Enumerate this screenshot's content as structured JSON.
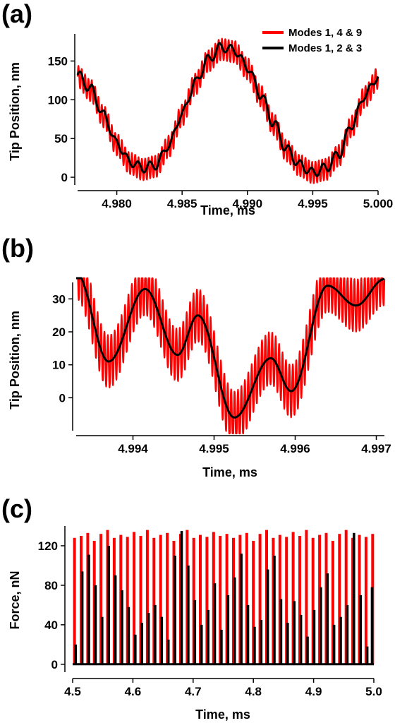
{
  "chart_data": [
    {
      "panel": "(a)",
      "type": "line",
      "xlabel": "Time, ms",
      "ylabel": "Tip Position, nm",
      "xlim": [
        4.977,
        5.0
      ],
      "ylim": [
        -10,
        185
      ],
      "xticks": [
        4.98,
        4.985,
        4.99,
        4.995,
        5.0
      ],
      "xtick_labels": [
        "4.980",
        "4.985",
        "4.990",
        "4.995",
        "5.000"
      ],
      "yticks": [
        0,
        50,
        100,
        150
      ],
      "ytick_labels": [
        "0",
        "50",
        "100",
        "150"
      ],
      "grid": false,
      "legend": "top-right",
      "series": [
        {
          "name": "Modes 1, 4 & 9",
          "color": "#ff0000",
          "x": [
            4.977,
            4.978,
            4.979,
            4.98,
            4.981,
            4.982,
            4.983,
            4.984,
            4.985,
            4.986,
            4.987,
            4.988,
            4.989,
            4.99,
            4.991,
            4.992,
            4.993,
            4.994,
            4.995,
            4.996,
            4.997,
            4.998,
            4.999,
            5.0
          ],
          "y": [
            130,
            112,
            78,
            42,
            18,
            10,
            14,
            40,
            80,
            120,
            150,
            165,
            162,
            140,
            105,
            68,
            34,
            15,
            6,
            10,
            28,
            66,
            104,
            128
          ],
          "ripple_amplitude": 14
        },
        {
          "name": "Modes 1, 2 & 3",
          "color": "#000000",
          "x": [
            4.977,
            4.978,
            4.979,
            4.98,
            4.981,
            4.982,
            4.983,
            4.984,
            4.985,
            4.986,
            4.987,
            4.988,
            4.989,
            4.99,
            4.991,
            4.992,
            4.993,
            4.994,
            4.995,
            4.996,
            4.997,
            4.998,
            4.999,
            5.0
          ],
          "y": [
            132,
            114,
            80,
            44,
            20,
            12,
            16,
            42,
            82,
            122,
            152,
            168,
            164,
            142,
            107,
            70,
            36,
            16,
            6,
            12,
            30,
            68,
            106,
            130
          ],
          "ripple_amplitude": 6
        }
      ]
    },
    {
      "panel": "(b)",
      "type": "line",
      "xlabel": "Time, ms",
      "ylabel": "Tip Position, nm",
      "xlim": [
        4.9933,
        4.9971
      ],
      "ylim": [
        -10,
        35
      ],
      "xticks": [
        4.994,
        4.995,
        4.996,
        4.997
      ],
      "xtick_labels": [
        "4.994",
        "4.995",
        "4.996",
        "4.997"
      ],
      "yticks": [
        0,
        10,
        20,
        30
      ],
      "ytick_labels": [
        "0",
        "10",
        "20",
        "30"
      ],
      "grid": false,
      "series": [
        {
          "name": "Modes 1, 4 & 9",
          "color": "#ff0000",
          "x": [
            4.9933,
            4.9937,
            4.99415,
            4.99455,
            4.9948,
            4.99525,
            4.9957,
            4.99595,
            4.9964,
            4.99675,
            4.9971
          ],
          "y": [
            38,
            11,
            33,
            13,
            25,
            -6,
            12,
            2,
            34,
            28,
            36
          ],
          "ripple_amplitude": 8
        },
        {
          "name": "Modes 1, 2 & 3",
          "color": "#000000",
          "x": [
            4.9933,
            4.9937,
            4.99415,
            4.99455,
            4.9948,
            4.99525,
            4.9957,
            4.99595,
            4.9964,
            4.99675,
            4.9971
          ],
          "y": [
            38,
            11,
            33,
            13,
            25,
            -6,
            12,
            2,
            34,
            28,
            36
          ],
          "ripple_amplitude": 0
        }
      ]
    },
    {
      "panel": "(c)",
      "type": "bar",
      "xlabel": "Time, ms",
      "ylabel": "Force, nN",
      "xlim": [
        4.5,
        5.0
      ],
      "ylim": [
        -8,
        140
      ],
      "xticks": [
        4.5,
        4.6,
        4.7,
        4.8,
        4.9,
        5.0
      ],
      "xtick_labels": [
        "4.5",
        "4.6",
        "4.7",
        "4.8",
        "4.9",
        "5.0"
      ],
      "yticks": [
        0,
        40,
        80,
        120
      ],
      "ytick_labels": [
        "0",
        "40",
        "80",
        "120"
      ],
      "grid": false,
      "series": [
        {
          "name": "Modes 1, 4 & 9",
          "color": "#ff0000",
          "x": [
            4.503,
            4.514,
            4.525,
            4.536,
            4.547,
            4.558,
            4.569,
            4.58,
            4.591,
            4.602,
            4.613,
            4.624,
            4.635,
            4.646,
            4.657,
            4.668,
            4.679,
            4.69,
            4.701,
            4.712,
            4.723,
            4.734,
            4.745,
            4.756,
            4.767,
            4.778,
            4.789,
            4.8,
            4.811,
            4.822,
            4.833,
            4.844,
            4.855,
            4.866,
            4.877,
            4.888,
            4.899,
            4.91,
            4.921,
            4.932,
            4.943,
            4.954,
            4.965,
            4.976,
            4.987,
            4.998
          ],
          "values": [
            128,
            130,
            133,
            125,
            132,
            136,
            128,
            131,
            129,
            134,
            130,
            136,
            128,
            131,
            133,
            125,
            132,
            136,
            128,
            131,
            129,
            134,
            130,
            132,
            128,
            131,
            133,
            125,
            132,
            136,
            128,
            131,
            129,
            134,
            130,
            136,
            128,
            131,
            133,
            125,
            132,
            136,
            128,
            131,
            129,
            132
          ]
        },
        {
          "name": "Modes 1, 2 & 3",
          "color": "#000000",
          "x": [
            4.505,
            4.516,
            4.527,
            4.538,
            4.549,
            4.56,
            4.571,
            4.582,
            4.593,
            4.604,
            4.615,
            4.626,
            4.637,
            4.648,
            4.659,
            4.67,
            4.681,
            4.692,
            4.703,
            4.714,
            4.725,
            4.736,
            4.747,
            4.758,
            4.769,
            4.78,
            4.791,
            4.802,
            4.813,
            4.824,
            4.835,
            4.846,
            4.857,
            4.868,
            4.879,
            4.89,
            4.901,
            4.912,
            4.923,
            4.934,
            4.945,
            4.956,
            4.967,
            4.978,
            4.989,
            4.997
          ],
          "values": [
            20,
            94,
            111,
            80,
            48,
            120,
            90,
            75,
            58,
            30,
            42,
            52,
            60,
            48,
            25,
            110,
            135,
            100,
            65,
            40,
            55,
            82,
            35,
            70,
            88,
            112,
            60,
            38,
            45,
            96,
            110,
            66,
            42,
            64,
            50,
            28,
            55,
            78,
            92,
            40,
            48,
            60,
            133,
            70,
            18,
            78
          ]
        }
      ]
    }
  ]
}
